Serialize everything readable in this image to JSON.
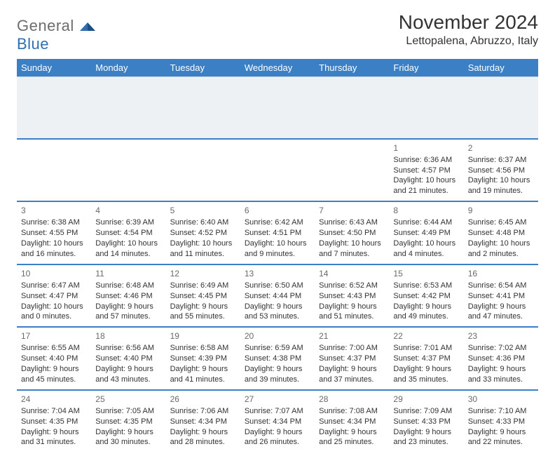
{
  "logo": {
    "general": "General",
    "blue": "Blue"
  },
  "title": "November 2024",
  "location": "Lettopalena, Abruzzo, Italy",
  "colors": {
    "header_bg": "#3b7fc4",
    "header_text": "#ffffff",
    "divider": "#3b7fc4",
    "spacer_bg": "#eef1f4",
    "daynum": "#6a6a6a",
    "body_text": "#333333",
    "logo_gray": "#6d6d6d",
    "logo_blue": "#2f6fb0"
  },
  "day_headers": [
    "Sunday",
    "Monday",
    "Tuesday",
    "Wednesday",
    "Thursday",
    "Friday",
    "Saturday"
  ],
  "weeks": [
    [
      null,
      null,
      null,
      null,
      null,
      {
        "n": "1",
        "sr": "Sunrise: 6:36 AM",
        "ss": "Sunset: 4:57 PM",
        "dl": "Daylight: 10 hours and 21 minutes."
      },
      {
        "n": "2",
        "sr": "Sunrise: 6:37 AM",
        "ss": "Sunset: 4:56 PM",
        "dl": "Daylight: 10 hours and 19 minutes."
      }
    ],
    [
      {
        "n": "3",
        "sr": "Sunrise: 6:38 AM",
        "ss": "Sunset: 4:55 PM",
        "dl": "Daylight: 10 hours and 16 minutes."
      },
      {
        "n": "4",
        "sr": "Sunrise: 6:39 AM",
        "ss": "Sunset: 4:54 PM",
        "dl": "Daylight: 10 hours and 14 minutes."
      },
      {
        "n": "5",
        "sr": "Sunrise: 6:40 AM",
        "ss": "Sunset: 4:52 PM",
        "dl": "Daylight: 10 hours and 11 minutes."
      },
      {
        "n": "6",
        "sr": "Sunrise: 6:42 AM",
        "ss": "Sunset: 4:51 PM",
        "dl": "Daylight: 10 hours and 9 minutes."
      },
      {
        "n": "7",
        "sr": "Sunrise: 6:43 AM",
        "ss": "Sunset: 4:50 PM",
        "dl": "Daylight: 10 hours and 7 minutes."
      },
      {
        "n": "8",
        "sr": "Sunrise: 6:44 AM",
        "ss": "Sunset: 4:49 PM",
        "dl": "Daylight: 10 hours and 4 minutes."
      },
      {
        "n": "9",
        "sr": "Sunrise: 6:45 AM",
        "ss": "Sunset: 4:48 PM",
        "dl": "Daylight: 10 hours and 2 minutes."
      }
    ],
    [
      {
        "n": "10",
        "sr": "Sunrise: 6:47 AM",
        "ss": "Sunset: 4:47 PM",
        "dl": "Daylight: 10 hours and 0 minutes."
      },
      {
        "n": "11",
        "sr": "Sunrise: 6:48 AM",
        "ss": "Sunset: 4:46 PM",
        "dl": "Daylight: 9 hours and 57 minutes."
      },
      {
        "n": "12",
        "sr": "Sunrise: 6:49 AM",
        "ss": "Sunset: 4:45 PM",
        "dl": "Daylight: 9 hours and 55 minutes."
      },
      {
        "n": "13",
        "sr": "Sunrise: 6:50 AM",
        "ss": "Sunset: 4:44 PM",
        "dl": "Daylight: 9 hours and 53 minutes."
      },
      {
        "n": "14",
        "sr": "Sunrise: 6:52 AM",
        "ss": "Sunset: 4:43 PM",
        "dl": "Daylight: 9 hours and 51 minutes."
      },
      {
        "n": "15",
        "sr": "Sunrise: 6:53 AM",
        "ss": "Sunset: 4:42 PM",
        "dl": "Daylight: 9 hours and 49 minutes."
      },
      {
        "n": "16",
        "sr": "Sunrise: 6:54 AM",
        "ss": "Sunset: 4:41 PM",
        "dl": "Daylight: 9 hours and 47 minutes."
      }
    ],
    [
      {
        "n": "17",
        "sr": "Sunrise: 6:55 AM",
        "ss": "Sunset: 4:40 PM",
        "dl": "Daylight: 9 hours and 45 minutes."
      },
      {
        "n": "18",
        "sr": "Sunrise: 6:56 AM",
        "ss": "Sunset: 4:40 PM",
        "dl": "Daylight: 9 hours and 43 minutes."
      },
      {
        "n": "19",
        "sr": "Sunrise: 6:58 AM",
        "ss": "Sunset: 4:39 PM",
        "dl": "Daylight: 9 hours and 41 minutes."
      },
      {
        "n": "20",
        "sr": "Sunrise: 6:59 AM",
        "ss": "Sunset: 4:38 PM",
        "dl": "Daylight: 9 hours and 39 minutes."
      },
      {
        "n": "21",
        "sr": "Sunrise: 7:00 AM",
        "ss": "Sunset: 4:37 PM",
        "dl": "Daylight: 9 hours and 37 minutes."
      },
      {
        "n": "22",
        "sr": "Sunrise: 7:01 AM",
        "ss": "Sunset: 4:37 PM",
        "dl": "Daylight: 9 hours and 35 minutes."
      },
      {
        "n": "23",
        "sr": "Sunrise: 7:02 AM",
        "ss": "Sunset: 4:36 PM",
        "dl": "Daylight: 9 hours and 33 minutes."
      }
    ],
    [
      {
        "n": "24",
        "sr": "Sunrise: 7:04 AM",
        "ss": "Sunset: 4:35 PM",
        "dl": "Daylight: 9 hours and 31 minutes."
      },
      {
        "n": "25",
        "sr": "Sunrise: 7:05 AM",
        "ss": "Sunset: 4:35 PM",
        "dl": "Daylight: 9 hours and 30 minutes."
      },
      {
        "n": "26",
        "sr": "Sunrise: 7:06 AM",
        "ss": "Sunset: 4:34 PM",
        "dl": "Daylight: 9 hours and 28 minutes."
      },
      {
        "n": "27",
        "sr": "Sunrise: 7:07 AM",
        "ss": "Sunset: 4:34 PM",
        "dl": "Daylight: 9 hours and 26 minutes."
      },
      {
        "n": "28",
        "sr": "Sunrise: 7:08 AM",
        "ss": "Sunset: 4:34 PM",
        "dl": "Daylight: 9 hours and 25 minutes."
      },
      {
        "n": "29",
        "sr": "Sunrise: 7:09 AM",
        "ss": "Sunset: 4:33 PM",
        "dl": "Daylight: 9 hours and 23 minutes."
      },
      {
        "n": "30",
        "sr": "Sunrise: 7:10 AM",
        "ss": "Sunset: 4:33 PM",
        "dl": "Daylight: 9 hours and 22 minutes."
      }
    ]
  ]
}
